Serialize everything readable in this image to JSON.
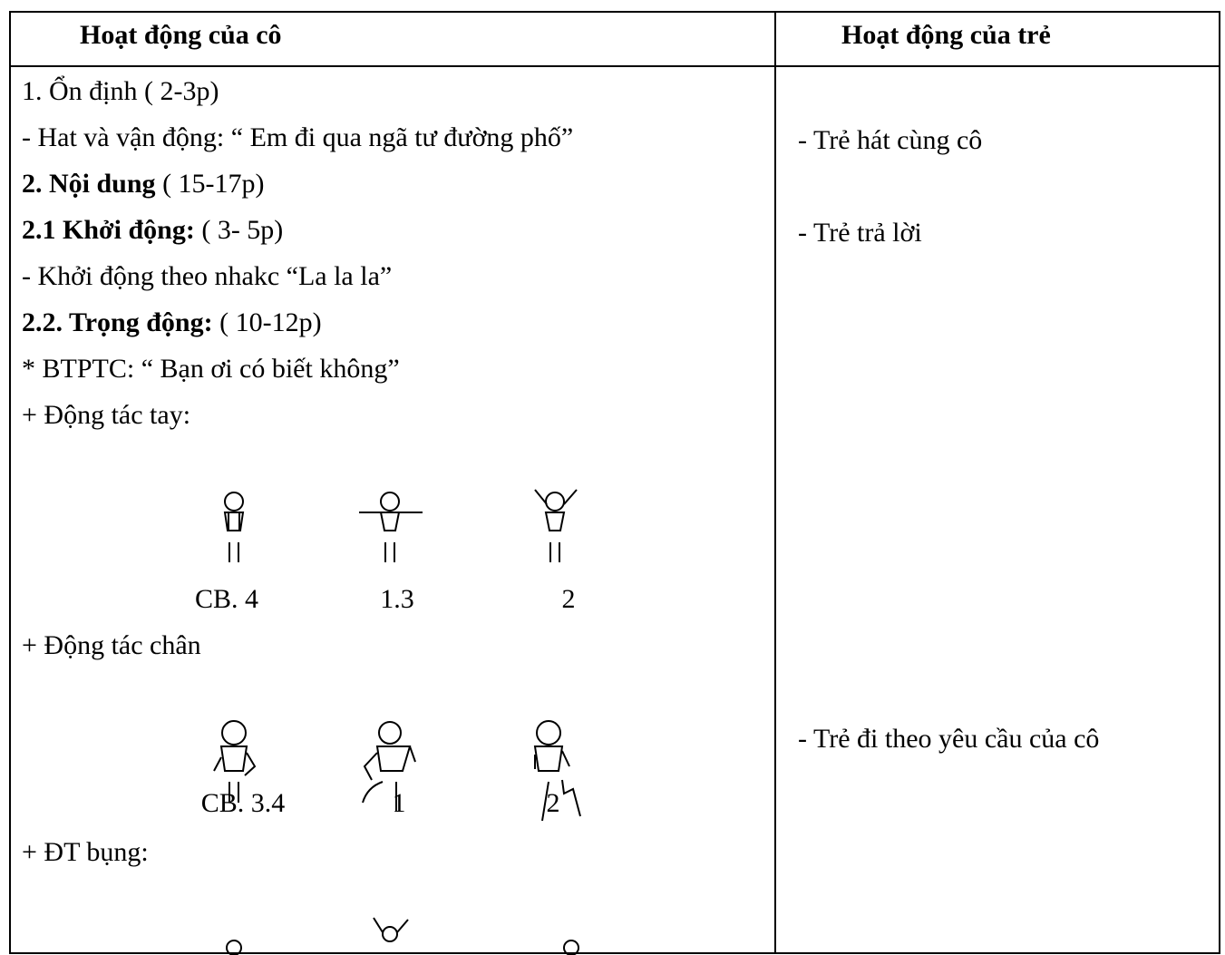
{
  "table": {
    "header": [
      "Hoạt động của cô",
      "Hoạt động của trẻ"
    ],
    "left_lines": [
      {
        "text": "1. Ổn định ( 2-3p)"
      },
      {
        "text": "- Hat và vận động: “ Em đi qua ngã tư đường phố”"
      },
      {
        "bold": "2. Nội dung",
        "text": "( 15-17p)"
      },
      {
        "bold": "2.1 Khởi động:",
        "text": "( 3- 5p)"
      },
      {
        "text": "- Khởi động theo nhakc “La la la”"
      },
      {
        "bold": "2.2. Trọng động:",
        "text": "( 10-12p)"
      },
      {
        "text": "* BTPTC: “ Bạn ơi có biết không”"
      },
      {
        "text": "+ Động tác tay:"
      }
    ],
    "arm_labels": [
      "CB. 4",
      "1.3",
      "2"
    ],
    "leg_heading": "+ Động tác chân",
    "leg_labels": [
      "CB. 3.4",
      "1",
      "2"
    ],
    "belly_heading": "+ ĐT bụng:",
    "right_lines": [
      "- Trẻ hát cùng cô",
      "- Trẻ trả lời",
      "- Trẻ đi theo yêu cầu của cô"
    ]
  }
}
